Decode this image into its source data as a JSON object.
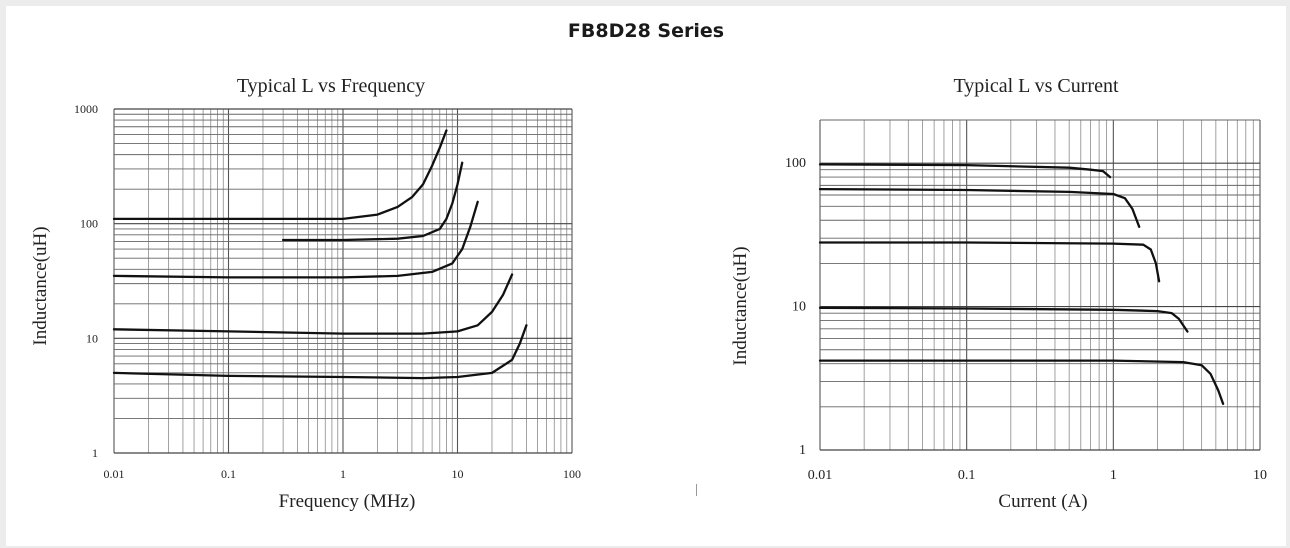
{
  "header": {
    "title": "FB8D28 Series"
  },
  "chart_data": [
    {
      "type": "line",
      "title": "Typical L vs Frequency",
      "xlabel": "Frequency (MHz)",
      "ylabel": "Inductance(uH)",
      "x_scale": "log",
      "y_scale": "log",
      "xlim": [
        0.01,
        100
      ],
      "ylim": [
        1,
        1000
      ],
      "x_ticks": [
        "0.01",
        "0.1",
        "1",
        "10",
        "100"
      ],
      "y_ticks": [
        "1",
        "10",
        "100",
        "1000"
      ],
      "grid": true,
      "series": [
        {
          "x": [
            0.01,
            0.1,
            1,
            2,
            3,
            4,
            5,
            6,
            7,
            8
          ],
          "y": [
            110,
            110,
            110,
            120,
            140,
            170,
            220,
            320,
            460,
            650
          ]
        },
        {
          "x": [
            0.3,
            1,
            3,
            5,
            7,
            8,
            9,
            10,
            11
          ],
          "y": [
            72,
            72,
            74,
            78,
            90,
            110,
            150,
            220,
            340
          ]
        },
        {
          "x": [
            0.01,
            0.1,
            1,
            3,
            6,
            9,
            11,
            13,
            15
          ],
          "y": [
            35,
            34,
            34,
            35,
            38,
            45,
            60,
            95,
            155
          ]
        },
        {
          "x": [
            0.01,
            0.1,
            1,
            5,
            10,
            15,
            20,
            25,
            30
          ],
          "y": [
            12,
            11.5,
            11,
            11,
            11.5,
            13,
            17,
            24,
            36
          ]
        },
        {
          "x": [
            0.01,
            0.1,
            1,
            5,
            10,
            20,
            30,
            35,
            40
          ],
          "y": [
            5,
            4.7,
            4.6,
            4.5,
            4.6,
            5,
            6.5,
            9,
            13
          ]
        }
      ]
    },
    {
      "type": "line",
      "title": "Typical L vs Current",
      "xlabel": "Current (A)",
      "ylabel": "Inductance(uH)",
      "x_scale": "log",
      "y_scale": "log",
      "xlim": [
        0.01,
        10
      ],
      "ylim": [
        1,
        200
      ],
      "x_ticks": [
        "0.01",
        "0.1",
        "1",
        "10"
      ],
      "y_ticks": [
        "1",
        "10",
        "100"
      ],
      "grid": true,
      "series": [
        {
          "x": [
            0.01,
            0.1,
            0.5,
            0.7,
            0.85,
            0.95
          ],
          "y": [
            98,
            97,
            93,
            90,
            88,
            80
          ]
        },
        {
          "x": [
            0.01,
            0.1,
            0.5,
            1,
            1.2,
            1.35,
            1.5
          ],
          "y": [
            66,
            65,
            63,
            61,
            57,
            48,
            36
          ]
        },
        {
          "x": [
            0.01,
            0.1,
            1,
            1.6,
            1.8,
            1.95,
            2.05
          ],
          "y": [
            28,
            28,
            27.5,
            27,
            25,
            20,
            15
          ]
        },
        {
          "x": [
            0.01,
            0.1,
            1,
            2,
            2.5,
            2.8,
            3.2
          ],
          "y": [
            9.8,
            9.7,
            9.5,
            9.3,
            9,
            8.2,
            6.7
          ]
        },
        {
          "x": [
            0.01,
            0.1,
            1,
            3,
            4,
            4.6,
            5.2,
            5.6
          ],
          "y": [
            4.2,
            4.2,
            4.2,
            4.1,
            3.9,
            3.4,
            2.6,
            2.1
          ]
        }
      ]
    }
  ]
}
